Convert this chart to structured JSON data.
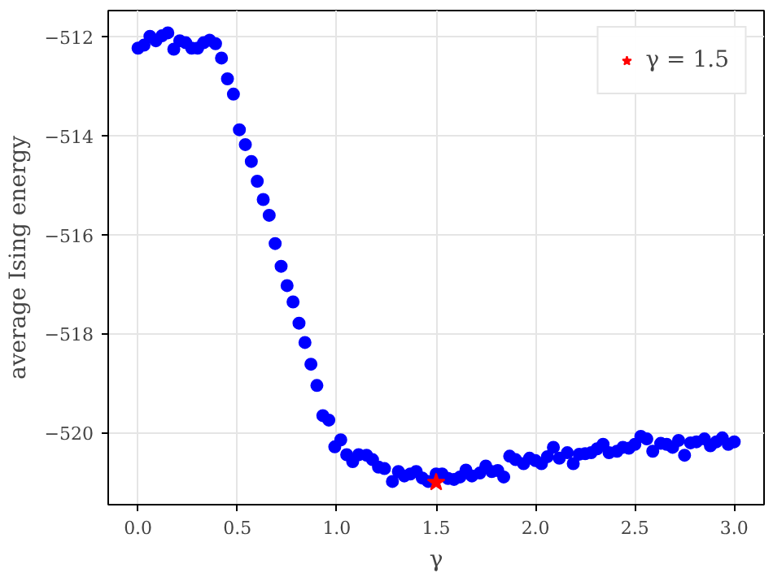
{
  "chart_data": {
    "type": "scatter",
    "xlabel": "γ",
    "ylabel": "average Ising energy",
    "xlim": [
      -0.15,
      3.15
    ],
    "ylim": [
      -521.46,
      -511.47
    ],
    "xticks": [
      {
        "value": 0,
        "label": "0.0"
      },
      {
        "value": 0.5,
        "label": "0.5"
      },
      {
        "value": 1,
        "label": "1.0"
      },
      {
        "value": 1.5,
        "label": "1.5"
      },
      {
        "value": 2,
        "label": "2.0"
      },
      {
        "value": 2.5,
        "label": "2.5"
      },
      {
        "value": 3,
        "label": "3.0"
      }
    ],
    "yticks": [
      -520,
      -518,
      -516,
      -514,
      -512
    ],
    "grid": true,
    "legend": "top right",
    "series": [
      {
        "color": "#0000ff",
        "marker": "circle",
        "x": [
          0,
          0.03,
          0.06,
          0.09,
          0.12,
          0.15,
          0.18,
          0.21,
          0.24,
          0.27,
          0.3,
          0.33,
          0.36,
          0.39,
          0.42,
          0.45,
          0.48,
          0.51,
          0.54,
          0.57,
          0.6,
          0.63,
          0.66,
          0.69,
          0.72,
          0.75,
          0.78,
          0.81,
          0.84,
          0.87,
          0.9,
          0.93,
          0.96,
          0.99,
          1.02,
          1.05,
          1.08,
          1.11,
          1.15,
          1.18,
          1.21,
          1.24,
          1.28,
          1.31,
          1.34,
          1.37,
          1.4,
          1.43,
          1.46,
          1.5,
          1.53,
          1.56,
          1.59,
          1.62,
          1.65,
          1.68,
          1.72,
          1.75,
          1.78,
          1.81,
          1.84,
          1.87,
          1.9,
          1.94,
          1.97,
          2.0,
          2.03,
          2.06,
          2.09,
          2.12,
          2.16,
          2.19,
          2.22,
          2.25,
          2.28,
          2.31,
          2.34,
          2.37,
          2.41,
          2.44,
          2.47,
          2.5,
          2.53,
          2.56,
          2.59,
          2.63,
          2.66,
          2.69,
          2.72,
          2.75,
          2.78,
          2.81,
          2.85,
          2.88,
          2.91,
          2.94,
          2.97,
          3.0
        ],
        "values": [
          -512.23,
          -512.17,
          -511.99,
          -512.08,
          -511.98,
          -511.92,
          -512.25,
          -512.08,
          -512.12,
          -512.23,
          -512.23,
          -512.12,
          -512.07,
          -512.14,
          -512.43,
          -512.85,
          -513.16,
          -513.88,
          -514.18,
          -514.52,
          -514.92,
          -515.29,
          -515.61,
          -516.18,
          -516.64,
          -517.03,
          -517.36,
          -517.79,
          -518.18,
          -518.62,
          -519.05,
          -519.66,
          -519.75,
          -520.29,
          -520.15,
          -520.45,
          -520.59,
          -520.45,
          -520.46,
          -520.55,
          -520.7,
          -520.73,
          -520.99,
          -520.79,
          -520.88,
          -520.84,
          -520.79,
          -520.92,
          -520.99,
          -520.84,
          -520.84,
          -520.93,
          -520.95,
          -520.9,
          -520.76,
          -520.88,
          -520.82,
          -520.68,
          -520.79,
          -520.77,
          -520.9,
          -520.48,
          -520.55,
          -520.63,
          -520.52,
          -520.57,
          -520.63,
          -520.49,
          -520.3,
          -520.52,
          -520.41,
          -520.63,
          -520.44,
          -520.43,
          -520.41,
          -520.33,
          -520.24,
          -520.41,
          -520.38,
          -520.3,
          -520.32,
          -520.24,
          -520.08,
          -520.13,
          -520.38,
          -520.22,
          -520.24,
          -520.3,
          -520.16,
          -520.46,
          -520.21,
          -520.19,
          -520.13,
          -520.27,
          -520.19,
          -520.11,
          -520.24,
          -520.19
        ]
      },
      {
        "name": "γ = 1.5",
        "color": "#ff0000",
        "marker": "star",
        "x": [
          1.5
        ],
        "values": [
          -521.01
        ]
      }
    ]
  }
}
